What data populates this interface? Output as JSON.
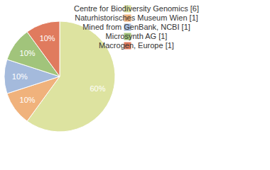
{
  "chart_data": {
    "type": "pie",
    "categories": [
      "Centre for Biodiversity Genomics [6]",
      "Naturhistorisches Museum Wien [1]",
      "Mined from GenBank, NCBI [1]",
      "Microsynth AG [1]",
      "Macrogen, Europe [1]"
    ],
    "values": [
      60,
      10,
      10,
      10,
      10
    ],
    "value_labels": [
      "60%",
      "10%",
      "10%",
      "10%",
      "10%"
    ],
    "colors": [
      "#dde3a0",
      "#f0b27c",
      "#a4badc",
      "#a1c47b",
      "#e07b5e"
    ],
    "data_labels": true,
    "legend": "top-right"
  }
}
